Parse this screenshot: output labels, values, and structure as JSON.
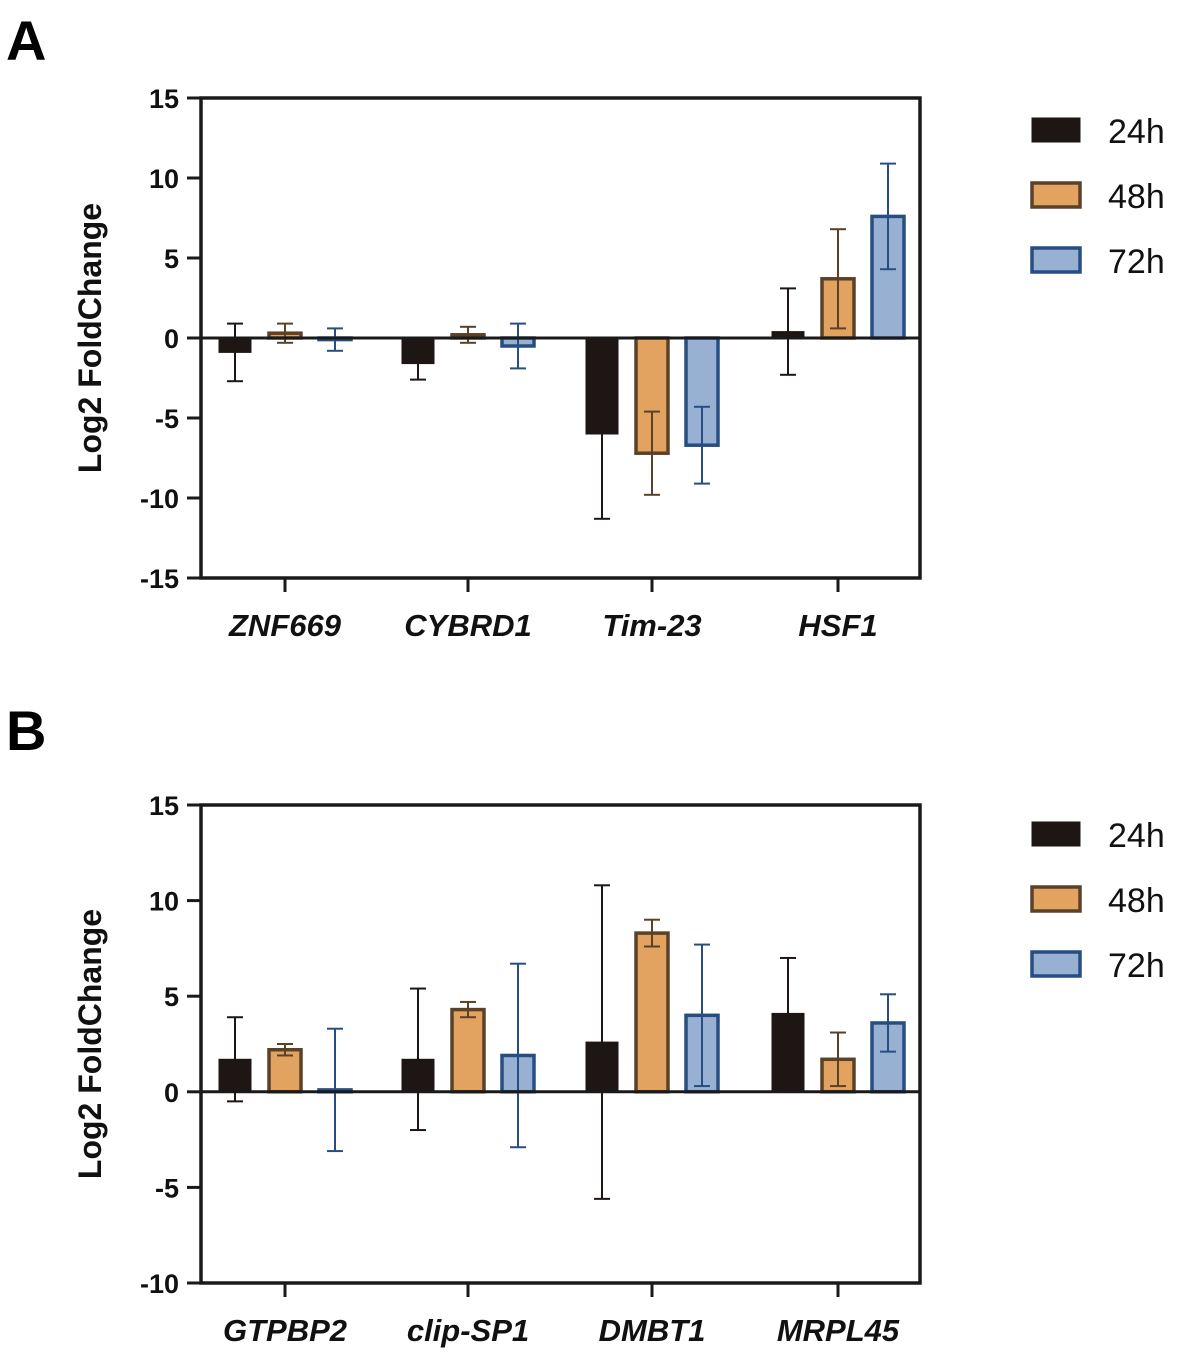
{
  "panels": [
    "A",
    "B"
  ],
  "series_names": [
    "24h",
    "48h",
    "72h"
  ],
  "colors": {
    "24h_fill": "#1e1614",
    "24h_edge": "#1e1614",
    "48h_fill": "#e2a360",
    "48h_edge": "#5a4128",
    "72h_fill": "#98b0d2",
    "72h_edge": "#274e82",
    "axis": "#1a1a1a"
  },
  "chart_data": [
    {
      "type": "bar",
      "panel": "A",
      "title": "",
      "xlabel": "",
      "ylabel": "Log2 FoldChange",
      "ylim": [
        -15,
        15
      ],
      "yticks": [
        15,
        10,
        5,
        0,
        -5,
        -10,
        -15
      ],
      "legend": "right",
      "categories": [
        "ZNF669",
        "CYBRD1",
        "Tim-23",
        "HSF1"
      ],
      "series": [
        {
          "name": "24h",
          "values": [
            -0.9,
            -1.6,
            -6.0,
            0.4
          ],
          "errors": [
            1.8,
            1.0,
            5.3,
            2.7
          ]
        },
        {
          "name": "48h",
          "values": [
            0.3,
            0.2,
            -7.2,
            3.7
          ],
          "errors": [
            0.6,
            0.5,
            2.6,
            3.1
          ]
        },
        {
          "name": "72h",
          "values": [
            -0.1,
            -0.5,
            -6.7,
            7.6
          ],
          "errors": [
            0.7,
            1.4,
            2.4,
            3.3
          ]
        }
      ]
    },
    {
      "type": "bar",
      "panel": "B",
      "title": "",
      "xlabel": "",
      "ylabel": "Log2 FoldChange",
      "ylim": [
        -10,
        15
      ],
      "yticks": [
        15,
        10,
        5,
        0,
        -5,
        -10
      ],
      "legend": "right",
      "categories": [
        "GTPBP2",
        "clip-SP1",
        "DMBT1",
        "MRPL45"
      ],
      "series": [
        {
          "name": "24h",
          "values": [
            1.7,
            1.7,
            2.6,
            4.1
          ],
          "errors": [
            2.2,
            3.7,
            8.2,
            2.9
          ]
        },
        {
          "name": "48h",
          "values": [
            2.2,
            4.3,
            8.3,
            1.7
          ],
          "errors": [
            0.3,
            0.4,
            0.7,
            1.4
          ]
        },
        {
          "name": "72h",
          "values": [
            0.1,
            1.9,
            4.0,
            3.6
          ],
          "errors": [
            3.2,
            4.8,
            3.7,
            1.5
          ]
        }
      ]
    }
  ]
}
